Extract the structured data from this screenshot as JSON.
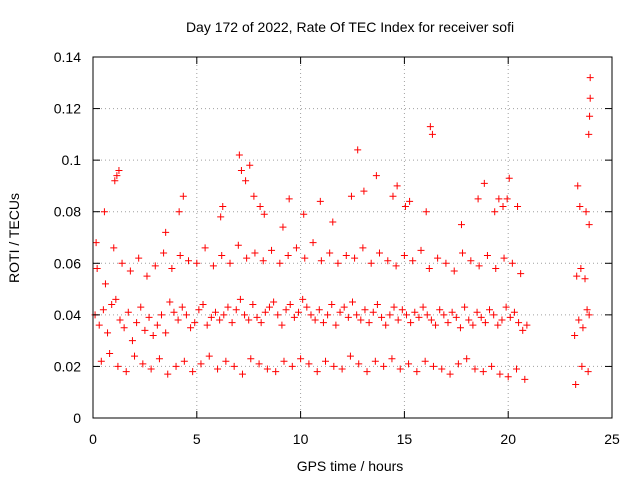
{
  "chart_data": {
    "type": "scatter",
    "title": "Day 172 of 2022, Rate Of TEC Index for receiver sofi",
    "xlabel": "GPS time / hours",
    "ylabel": "ROTI / TECUs",
    "xlim": [
      0,
      25
    ],
    "ylim": [
      0,
      0.14
    ],
    "xticks": [
      0,
      5,
      10,
      15,
      20,
      25
    ],
    "xtick_labels": [
      "0",
      "5",
      "10",
      "15",
      "20",
      "25"
    ],
    "yticks": [
      0,
      0.02,
      0.04,
      0.06,
      0.08,
      0.1,
      0.12,
      0.14
    ],
    "ytick_labels": [
      "0",
      "0.02",
      "0.04",
      "0.06",
      "0.08",
      "0.1",
      "0.12",
      "0.14"
    ],
    "grid": true,
    "marker": "+",
    "color": "#ff0000",
    "series": [
      {
        "x": [
          0.1,
          0.3,
          0.5,
          0.7,
          0.9,
          1.1,
          1.3,
          1.5,
          1.7,
          1.9,
          2.1,
          2.3,
          2.5,
          2.7,
          2.9,
          3.1,
          3.3,
          3.5,
          3.7,
          3.9,
          4.1,
          4.3,
          4.5,
          4.7,
          4.9,
          5.1,
          5.3,
          5.5,
          5.7,
          5.9,
          6.1,
          6.3,
          6.5,
          6.7,
          6.9,
          7.1,
          7.3,
          7.5,
          7.7,
          7.9,
          8.1,
          8.3,
          8.5,
          8.7,
          8.9,
          9.1,
          9.3,
          9.5,
          9.7,
          9.9,
          10.1,
          10.3,
          10.5,
          10.7,
          10.9,
          11.1,
          11.3,
          11.5,
          11.7,
          11.9,
          12.1,
          12.3,
          12.5,
          12.7,
          12.9,
          13.1,
          13.3,
          13.5,
          13.7,
          13.9,
          14.1,
          14.3,
          14.5,
          14.7,
          14.9,
          15.1,
          15.3,
          15.5,
          15.7,
          15.9,
          16.1,
          16.3,
          16.5,
          16.7,
          16.9,
          17.1,
          17.3,
          17.5,
          17.7,
          17.9,
          18.1,
          18.3,
          18.5,
          18.7,
          18.9,
          19.1,
          19.3,
          19.5,
          19.7,
          19.9,
          20.1,
          20.3,
          20.5,
          20.7,
          20.9,
          23.2,
          23.4,
          23.6,
          23.8,
          23.9,
          0.2,
          0.6,
          1.0,
          1.4,
          1.8,
          2.2,
          2.6,
          3.0,
          3.4,
          3.8,
          4.2,
          4.6,
          5.0,
          5.4,
          5.8,
          6.2,
          6.6,
          7.0,
          7.4,
          7.8,
          8.2,
          8.6,
          9.0,
          9.4,
          9.8,
          10.2,
          10.6,
          11.0,
          11.4,
          11.8,
          12.2,
          12.6,
          13.0,
          13.4,
          13.8,
          14.2,
          14.6,
          15.0,
          15.4,
          15.8,
          16.2,
          16.6,
          17.0,
          17.4,
          17.8,
          18.2,
          18.6,
          19.0,
          19.4,
          19.8,
          20.2,
          20.6,
          23.3,
          23.5,
          23.7,
          0.4,
          0.8,
          1.2,
          1.6,
          2.0,
          2.4,
          2.8,
          3.2,
          3.6,
          4.0,
          4.4,
          4.8,
          5.2,
          5.6,
          6.0,
          6.4,
          6.8,
          7.2,
          7.6,
          8.0,
          8.4,
          8.8,
          9.2,
          9.6,
          10.0,
          10.4,
          10.8,
          11.2,
          11.6,
          12.0,
          12.4,
          12.8,
          13.2,
          13.6,
          14.0,
          14.4,
          14.8,
          15.2,
          15.6,
          16.0,
          16.4,
          16.8,
          17.2,
          17.6,
          18.0,
          18.4,
          18.8,
          19.2,
          19.6,
          20.0,
          20.4,
          20.8,
          23.25,
          23.55,
          23.85,
          0.15,
          0.55,
          1.05,
          1.15,
          1.25,
          3.5,
          4.15,
          4.35,
          6.15,
          6.25,
          7.05,
          7.15,
          7.35,
          7.55,
          7.75,
          8.05,
          8.25,
          9.15,
          9.45,
          10.15,
          10.95,
          11.55,
          12.45,
          12.75,
          13.05,
          13.65,
          14.45,
          14.65,
          15.05,
          15.25,
          16.05,
          16.25,
          16.35,
          17.75,
          18.55,
          18.85,
          19.35,
          19.55,
          19.75,
          19.95,
          20.05,
          20.45,
          23.35,
          23.45,
          23.75,
          23.9,
          23.95,
          23.95,
          23.92,
          23.88
        ],
        "y": [
          0.04,
          0.036,
          0.042,
          0.033,
          0.044,
          0.046,
          0.038,
          0.035,
          0.041,
          0.03,
          0.037,
          0.043,
          0.034,
          0.039,
          0.032,
          0.036,
          0.04,
          0.033,
          0.045,
          0.041,
          0.038,
          0.043,
          0.04,
          0.035,
          0.037,
          0.042,
          0.044,
          0.036,
          0.039,
          0.041,
          0.038,
          0.04,
          0.043,
          0.037,
          0.042,
          0.046,
          0.04,
          0.038,
          0.044,
          0.039,
          0.037,
          0.041,
          0.043,
          0.045,
          0.04,
          0.036,
          0.042,
          0.044,
          0.039,
          0.041,
          0.046,
          0.043,
          0.04,
          0.038,
          0.042,
          0.037,
          0.04,
          0.044,
          0.036,
          0.041,
          0.043,
          0.039,
          0.045,
          0.04,
          0.038,
          0.042,
          0.037,
          0.041,
          0.044,
          0.039,
          0.036,
          0.04,
          0.043,
          0.038,
          0.042,
          0.04,
          0.037,
          0.041,
          0.039,
          0.043,
          0.04,
          0.038,
          0.036,
          0.042,
          0.04,
          0.037,
          0.041,
          0.039,
          0.035,
          0.043,
          0.038,
          0.036,
          0.041,
          0.039,
          0.037,
          0.042,
          0.04,
          0.036,
          0.038,
          0.043,
          0.039,
          0.041,
          0.037,
          0.034,
          0.036,
          0.032,
          0.038,
          0.035,
          0.042,
          0.04,
          0.058,
          0.052,
          0.066,
          0.06,
          0.057,
          0.062,
          0.055,
          0.059,
          0.064,
          0.058,
          0.063,
          0.061,
          0.06,
          0.066,
          0.059,
          0.063,
          0.06,
          0.067,
          0.062,
          0.064,
          0.061,
          0.065,
          0.06,
          0.063,
          0.066,
          0.062,
          0.068,
          0.061,
          0.064,
          0.06,
          0.063,
          0.062,
          0.066,
          0.06,
          0.064,
          0.061,
          0.059,
          0.063,
          0.061,
          0.065,
          0.058,
          0.062,
          0.06,
          0.057,
          0.064,
          0.061,
          0.059,
          0.063,
          0.058,
          0.062,
          0.06,
          0.056,
          0.055,
          0.058,
          0.054,
          0.022,
          0.025,
          0.02,
          0.018,
          0.024,
          0.021,
          0.019,
          0.023,
          0.017,
          0.02,
          0.022,
          0.018,
          0.021,
          0.024,
          0.019,
          0.022,
          0.02,
          0.017,
          0.023,
          0.021,
          0.019,
          0.018,
          0.022,
          0.02,
          0.023,
          0.021,
          0.018,
          0.022,
          0.02,
          0.019,
          0.024,
          0.021,
          0.018,
          0.022,
          0.02,
          0.023,
          0.019,
          0.021,
          0.018,
          0.022,
          0.02,
          0.019,
          0.017,
          0.021,
          0.023,
          0.019,
          0.018,
          0.02,
          0.017,
          0.016,
          0.019,
          0.015,
          0.013,
          0.02,
          0.018,
          0.068,
          0.08,
          0.092,
          0.094,
          0.096,
          0.072,
          0.08,
          0.086,
          0.078,
          0.082,
          0.102,
          0.096,
          0.092,
          0.098,
          0.086,
          0.082,
          0.079,
          0.074,
          0.085,
          0.079,
          0.084,
          0.076,
          0.086,
          0.104,
          0.088,
          0.094,
          0.086,
          0.09,
          0.082,
          0.084,
          0.08,
          0.113,
          0.11,
          0.075,
          0.085,
          0.091,
          0.08,
          0.085,
          0.082,
          0.085,
          0.093,
          0.082,
          0.09,
          0.082,
          0.08,
          0.075,
          0.132,
          0.124,
          0.117,
          0.11
        ]
      }
    ]
  }
}
